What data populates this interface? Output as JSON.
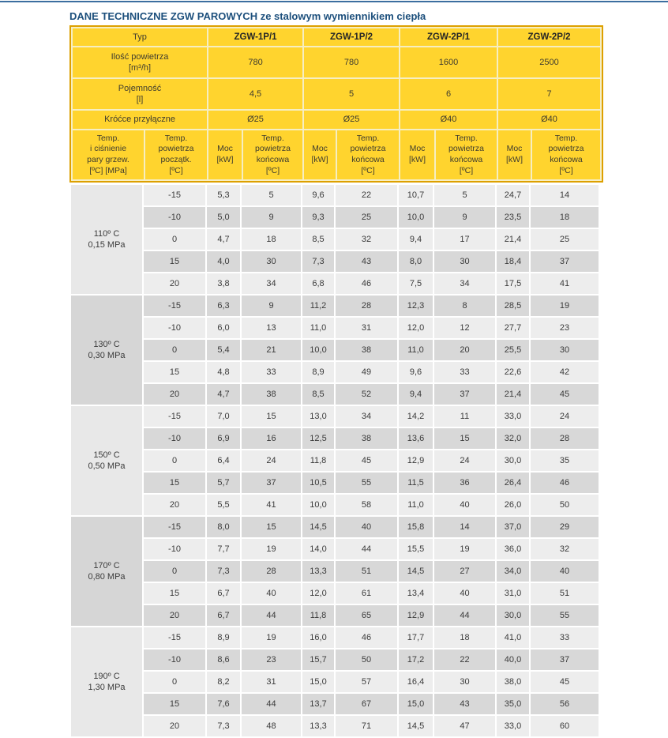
{
  "page": {
    "title": "DANE TECHNICZNE ZGW PAROWYCH ze stalowym wymiennikiem ciepła"
  },
  "colors": {
    "accent_line": "#3c6e9f",
    "title_blue": "#1c4f7c",
    "header_yellow": "#ffd42e",
    "header_border_orange": "#dda000",
    "row_light": "#ededed",
    "row_dark": "#d8d8d8"
  },
  "spec": {
    "typ_label": "Typ",
    "models": [
      "ZGW-1P/1",
      "ZGW-1P/2",
      "ZGW-2P/1",
      "ZGW-2P/2"
    ],
    "rows": [
      {
        "label": "Ilość powietrza\n[m³/h]",
        "values": [
          "780",
          "780",
          "1600",
          "2500"
        ]
      },
      {
        "label": "Pojemność\n[l]",
        "values": [
          "4,5",
          "5",
          "6",
          "7"
        ]
      },
      {
        "label": "Króćce przyłączne",
        "values": [
          "Ø25",
          "Ø25",
          "Ø40",
          "Ø40"
        ]
      }
    ]
  },
  "column_headers": {
    "temp_pressure": "Temp.\ni ciśnienie\npary grzew.\n[ºC] [MPa]",
    "initial_temp": "Temp.\npowietrza\npoczątk.\n[ºC]",
    "power": "Moc\n[kW]",
    "final_temp": "Temp.\npowietrza\nkońcowa\n[ºC]"
  },
  "chart_data": {
    "type": "table",
    "groups": [
      {
        "temp": "110º C",
        "pressure": "0,15 MPa",
        "rows": [
          {
            "t0": "-15",
            "cells": [
              "5,3",
              "5",
              "9,6",
              "22",
              "10,7",
              "5",
              "24,7",
              "14"
            ]
          },
          {
            "t0": "-10",
            "cells": [
              "5,0",
              "9",
              "9,3",
              "25",
              "10,0",
              "9",
              "23,5",
              "18"
            ]
          },
          {
            "t0": "0",
            "cells": [
              "4,7",
              "18",
              "8,5",
              "32",
              "9,4",
              "17",
              "21,4",
              "25"
            ]
          },
          {
            "t0": "15",
            "cells": [
              "4,0",
              "30",
              "7,3",
              "43",
              "8,0",
              "30",
              "18,4",
              "37"
            ]
          },
          {
            "t0": "20",
            "cells": [
              "3,8",
              "34",
              "6,8",
              "46",
              "7,5",
              "34",
              "17,5",
              "41"
            ]
          }
        ]
      },
      {
        "temp": "130º C",
        "pressure": "0,30 MPa",
        "rows": [
          {
            "t0": "-15",
            "cells": [
              "6,3",
              "9",
              "11,2",
              "28",
              "12,3",
              "8",
              "28,5",
              "19"
            ]
          },
          {
            "t0": "-10",
            "cells": [
              "6,0",
              "13",
              "11,0",
              "31",
              "12,0",
              "12",
              "27,7",
              "23"
            ]
          },
          {
            "t0": "0",
            "cells": [
              "5,4",
              "21",
              "10,0",
              "38",
              "11,0",
              "20",
              "25,5",
              "30"
            ]
          },
          {
            "t0": "15",
            "cells": [
              "4,8",
              "33",
              "8,9",
              "49",
              "9,6",
              "33",
              "22,6",
              "42"
            ]
          },
          {
            "t0": "20",
            "cells": [
              "4,7",
              "38",
              "8,5",
              "52",
              "9,4",
              "37",
              "21,4",
              "45"
            ]
          }
        ]
      },
      {
        "temp": "150º C",
        "pressure": "0,50 MPa",
        "rows": [
          {
            "t0": "-15",
            "cells": [
              "7,0",
              "15",
              "13,0",
              "34",
              "14,2",
              "11",
              "33,0",
              "24"
            ]
          },
          {
            "t0": "-10",
            "cells": [
              "6,9",
              "16",
              "12,5",
              "38",
              "13,6",
              "15",
              "32,0",
              "28"
            ]
          },
          {
            "t0": "0",
            "cells": [
              "6,4",
              "24",
              "11,8",
              "45",
              "12,9",
              "24",
              "30,0",
              "35"
            ]
          },
          {
            "t0": "15",
            "cells": [
              "5,7",
              "37",
              "10,5",
              "55",
              "11,5",
              "36",
              "26,4",
              "46"
            ]
          },
          {
            "t0": "20",
            "cells": [
              "5,5",
              "41",
              "10,0",
              "58",
              "11,0",
              "40",
              "26,0",
              "50"
            ]
          }
        ]
      },
      {
        "temp": "170º C",
        "pressure": "0,80 MPa",
        "rows": [
          {
            "t0": "-15",
            "cells": [
              "8,0",
              "15",
              "14,5",
              "40",
              "15,8",
              "14",
              "37,0",
              "29"
            ]
          },
          {
            "t0": "-10",
            "cells": [
              "7,7",
              "19",
              "14,0",
              "44",
              "15,5",
              "19",
              "36,0",
              "32"
            ]
          },
          {
            "t0": "0",
            "cells": [
              "7,3",
              "28",
              "13,3",
              "51",
              "14,5",
              "27",
              "34,0",
              "40"
            ]
          },
          {
            "t0": "15",
            "cells": [
              "6,7",
              "40",
              "12,0",
              "61",
              "13,4",
              "40",
              "31,0",
              "51"
            ]
          },
          {
            "t0": "20",
            "cells": [
              "6,7",
              "44",
              "11,8",
              "65",
              "12,9",
              "44",
              "30,0",
              "55"
            ]
          }
        ]
      },
      {
        "temp": "190º C",
        "pressure": "1,30 MPa",
        "rows": [
          {
            "t0": "-15",
            "cells": [
              "8,9",
              "19",
              "16,0",
              "46",
              "17,7",
              "18",
              "41,0",
              "33"
            ]
          },
          {
            "t0": "-10",
            "cells": [
              "8,6",
              "23",
              "15,7",
              "50",
              "17,2",
              "22",
              "40,0",
              "37"
            ]
          },
          {
            "t0": "0",
            "cells": [
              "8,2",
              "31",
              "15,0",
              "57",
              "16,4",
              "30",
              "38,0",
              "45"
            ]
          },
          {
            "t0": "15",
            "cells": [
              "7,6",
              "44",
              "13,7",
              "67",
              "15,0",
              "43",
              "35,0",
              "56"
            ]
          },
          {
            "t0": "20",
            "cells": [
              "7,3",
              "48",
              "13,3",
              "71",
              "14,5",
              "47",
              "33,0",
              "60"
            ]
          }
        ]
      }
    ]
  }
}
